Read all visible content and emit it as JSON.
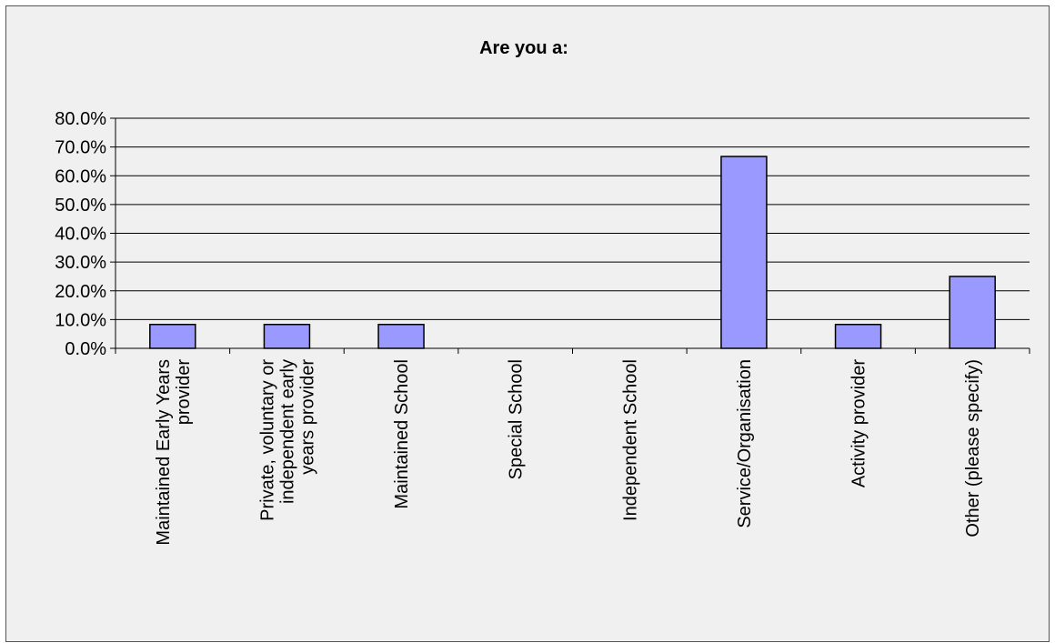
{
  "chart_data": {
    "type": "bar",
    "title": "Are you a:",
    "categories": [
      "Maintained Early Years provider",
      "Private, voluntary or independent early years provider",
      "Maintained School",
      "Special School",
      "Independent School",
      "Service/Organisation",
      "Activity provider",
      "Other (please specify)"
    ],
    "category_label_lines": [
      [
        "Maintained Early Years",
        "provider"
      ],
      [
        "Private, voluntary or",
        "independent early",
        "years provider"
      ],
      [
        "Maintained School"
      ],
      [
        "Special School"
      ],
      [
        "Independent School"
      ],
      [
        "Service/Organisation"
      ],
      [
        "Activity provider"
      ],
      [
        "Other (please specify)"
      ]
    ],
    "values": [
      8.3,
      8.3,
      8.3,
      0.0,
      0.0,
      66.7,
      8.3,
      25.0
    ],
    "ylim": [
      0,
      80
    ],
    "yticks": [
      0,
      10,
      20,
      30,
      40,
      50,
      60,
      70,
      80
    ],
    "ytick_labels": [
      "0.0%",
      "10.0%",
      "20.0%",
      "30.0%",
      "40.0%",
      "50.0%",
      "60.0%",
      "70.0%",
      "80.0%"
    ],
    "xlabel": "",
    "ylabel": "",
    "grid": true,
    "legend": "none",
    "colors": {
      "bar_fill": "#9999ff",
      "bar_stroke": "#000000",
      "background": "#f0f0f0",
      "gridline": "#000000"
    }
  }
}
